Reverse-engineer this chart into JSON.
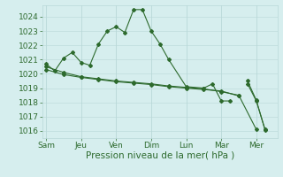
{
  "background_color": "#d6eeee",
  "grid_color": "#b8d8d8",
  "line_color": "#2d6a2d",
  "xlabel": "Pression niveau de la mer( hPa )",
  "ylim": [
    1015.5,
    1024.8
  ],
  "yticks": [
    1016,
    1017,
    1018,
    1019,
    1020,
    1021,
    1022,
    1023,
    1024
  ],
  "day_labels": [
    "Sam",
    "Jeu",
    "Ven",
    "Dim",
    "Lun",
    "Mar",
    "Mer"
  ],
  "day_positions": [
    0,
    2,
    4,
    6,
    8,
    10,
    12
  ],
  "xlim": [
    -0.2,
    13.2
  ],
  "series": [
    {
      "x": [
        0,
        0.5,
        1,
        1.5,
        2,
        2.5,
        3,
        3.5,
        4,
        4.5,
        5,
        5.5,
        6,
        6.5,
        7,
        8,
        9,
        9.5,
        10,
        10.5
      ],
      "y": [
        1020.7,
        1020.2,
        1021.1,
        1021.5,
        1020.8,
        1020.6,
        1022.1,
        1023.0,
        1023.3,
        1022.9,
        1024.5,
        1024.5,
        1023.0,
        1022.1,
        1021.0,
        1019.1,
        1019.0,
        1019.3,
        1018.1,
        1018.1
      ]
    },
    {
      "x": [
        0,
        1,
        2,
        3,
        4,
        5,
        6,
        7,
        8,
        9,
        10,
        11,
        12
      ],
      "y": [
        1020.5,
        1020.1,
        1019.8,
        1019.65,
        1019.5,
        1019.4,
        1019.3,
        1019.15,
        1019.05,
        1018.95,
        1018.75,
        1018.5,
        1016.1
      ]
    },
    {
      "x": [
        0,
        1,
        2,
        3,
        4,
        5,
        6,
        7,
        8,
        9,
        10,
        11
      ],
      "y": [
        1020.3,
        1019.95,
        1019.75,
        1019.6,
        1019.45,
        1019.35,
        1019.25,
        1019.1,
        1019.0,
        1018.9,
        1018.8,
        1018.45
      ]
    },
    {
      "x": [
        11.5,
        12,
        12.5
      ],
      "y": [
        1019.5,
        1018.15,
        1016.05
      ]
    },
    {
      "x": [
        11.5,
        12,
        12.5
      ],
      "y": [
        1019.3,
        1018.1,
        1016.1
      ]
    }
  ],
  "tick_fontsize": 6.5,
  "label_fontsize": 7.5
}
